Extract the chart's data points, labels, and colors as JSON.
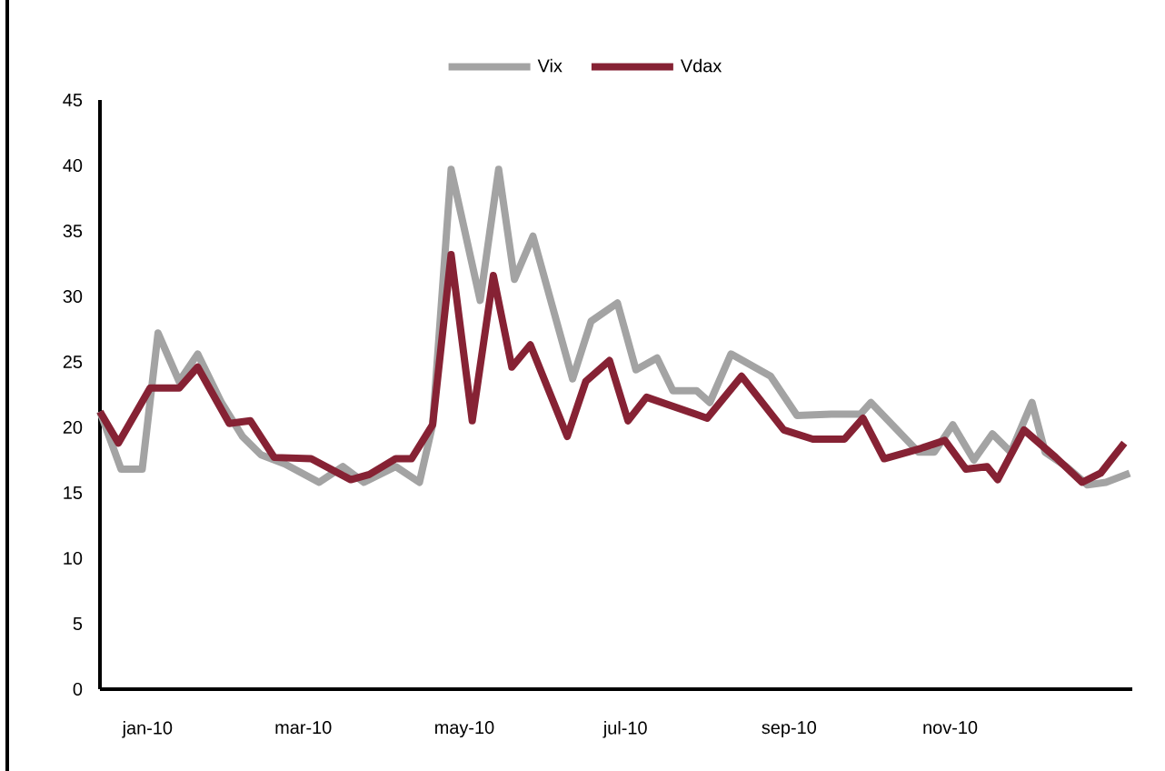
{
  "chart_data": {
    "type": "line",
    "legend": "top",
    "line_style": "solid",
    "marker": "none",
    "grid": false,
    "xlim": [
      "2009-12-14",
      "2011-01-09"
    ],
    "xticks": [
      {
        "value": "2010-01-01",
        "label": "jan-10"
      },
      {
        "value": "2010-03-01",
        "label": "mar-10"
      },
      {
        "value": "2010-05-01",
        "label": "may-10"
      },
      {
        "value": "2010-07-01",
        "label": "jul-10"
      },
      {
        "value": "2010-09-01",
        "label": "sep-10"
      },
      {
        "value": "2010-11-01",
        "label": "nov-10"
      }
    ],
    "ylim": [
      0,
      45
    ],
    "yticks": [
      0,
      5,
      10,
      15,
      20,
      25,
      30,
      35,
      40,
      45
    ],
    "series": [
      {
        "name": "Vix",
        "color": "#a3a3a3",
        "x": [
          "2009-12-14",
          "2009-12-22",
          "2009-12-30",
          "2010-01-05",
          "2010-01-13",
          "2010-01-20",
          "2010-01-29",
          "2010-02-06",
          "2010-02-13",
          "2010-02-22",
          "2010-03-07",
          "2010-03-16",
          "2010-03-24",
          "2010-04-05",
          "2010-04-14",
          "2010-04-19",
          "2010-04-26",
          "2010-05-07",
          "2010-05-14",
          "2010-05-20",
          "2010-05-27",
          "2010-06-03",
          "2010-06-11",
          "2010-06-18",
          "2010-06-28",
          "2010-07-05",
          "2010-07-13",
          "2010-07-19",
          "2010-07-28",
          "2010-08-02",
          "2010-08-10",
          "2010-08-25",
          "2010-09-04",
          "2010-09-17",
          "2010-09-28",
          "2010-10-02",
          "2010-10-20",
          "2010-10-26",
          "2010-11-02",
          "2010-11-10",
          "2010-11-17",
          "2010-11-24",
          "2010-12-02",
          "2010-12-07",
          "2010-12-15",
          "2010-12-23",
          "2010-12-30",
          "2011-01-08"
        ],
        "values": [
          21.2,
          16.8,
          16.8,
          27.2,
          23.5,
          25.6,
          21.9,
          19.3,
          17.9,
          17.2,
          15.8,
          17,
          15.8,
          17,
          15.8,
          20.2,
          39.7,
          29.7,
          39.7,
          31.3,
          34.6,
          29.5,
          23.7,
          28.1,
          29.5,
          24.4,
          25.3,
          22.8,
          22.8,
          21.9,
          25.6,
          23.9,
          20.9,
          21,
          21,
          21.9,
          18.1,
          18.1,
          20.2,
          17.5,
          19.5,
          18.1,
          21.9,
          18.1,
          17,
          15.6,
          15.8,
          16.5
        ]
      },
      {
        "name": "Vdax",
        "color": "#862234",
        "x": [
          "2009-12-14",
          "2009-12-21",
          "2010-01-02",
          "2010-01-13",
          "2010-01-20",
          "2010-02-01",
          "2010-02-09",
          "2010-02-18",
          "2010-03-04",
          "2010-03-19",
          "2010-03-26",
          "2010-04-05",
          "2010-04-11",
          "2010-04-19",
          "2010-04-26",
          "2010-05-04",
          "2010-05-12",
          "2010-05-19",
          "2010-05-26",
          "2010-06-09",
          "2010-06-16",
          "2010-06-25",
          "2010-07-02",
          "2010-07-09",
          "2010-08-01",
          "2010-08-14",
          "2010-08-30",
          "2010-09-10",
          "2010-09-22",
          "2010-09-29",
          "2010-10-07",
          "2010-10-21",
          "2010-10-30",
          "2010-11-07",
          "2010-11-15",
          "2010-11-19",
          "2010-11-29",
          "2010-12-11",
          "2010-12-21",
          "2010-12-28",
          "2011-01-06"
        ],
        "values": [
          21.2,
          18.8,
          23,
          23,
          24.6,
          20.3,
          20.5,
          17.7,
          17.6,
          16,
          16.4,
          17.6,
          17.6,
          20.2,
          33.2,
          20.5,
          31.6,
          24.6,
          26.3,
          19.3,
          23.5,
          25.1,
          20.5,
          22.3,
          20.7,
          23.9,
          19.8,
          19.1,
          19.1,
          20.7,
          17.6,
          18.4,
          19,
          16.8,
          17,
          16,
          19.8,
          17.7,
          15.8,
          16.5,
          18.8
        ]
      }
    ]
  }
}
